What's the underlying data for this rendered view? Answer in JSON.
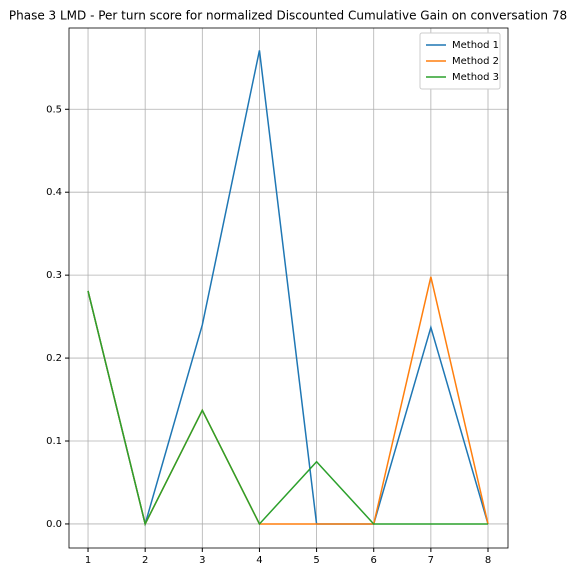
{
  "chart_data": {
    "type": "line",
    "title": "Phase 3 LMD - Per turn score for normalized Discounted Cumulative Gain on conversation 78",
    "x": [
      1,
      2,
      3,
      4,
      5,
      6,
      7,
      8
    ],
    "series": [
      {
        "name": "Method 1",
        "color": "#1f77b4",
        "values": [
          0.281,
          0,
          0.24,
          0.571,
          0,
          0,
          0.237,
          0
        ]
      },
      {
        "name": "Method 2",
        "color": "#ff7f0e",
        "values": [
          0.281,
          0,
          0.137,
          0,
          0,
          0,
          0.298,
          0
        ]
      },
      {
        "name": "Method 3",
        "color": "#2ca02c",
        "values": [
          0.281,
          0,
          0.137,
          0,
          0.075,
          0,
          0,
          0
        ]
      }
    ],
    "xlim": [
      0.667,
      8.35
    ],
    "ylim": [
      -0.029,
      0.598
    ],
    "xticks": [
      1,
      2,
      3,
      4,
      5,
      6,
      7,
      8
    ],
    "yticks": [
      {
        "value": 0,
        "label": "0.0"
      },
      0.1,
      0.2,
      0.3,
      0.4,
      0.5
    ],
    "grid": true,
    "legend": "upper right"
  }
}
